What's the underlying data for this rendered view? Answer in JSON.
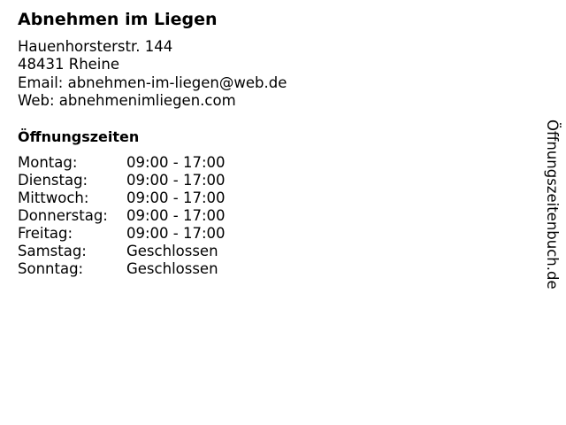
{
  "business": {
    "name": "Abnehmen im Liegen",
    "street": "Hauenhorsterstr. 144",
    "city": "48431 Rheine",
    "email": "Email: abnehmen-im-liegen@web.de",
    "web": "Web: abnehmenimliegen.com"
  },
  "hours_title": "Öffnungszeiten",
  "hours": [
    {
      "day": "Montag:",
      "time": "09:00 - 17:00"
    },
    {
      "day": "Dienstag:",
      "time": "09:00 - 17:00"
    },
    {
      "day": "Mittwoch:",
      "time": "09:00 - 17:00"
    },
    {
      "day": "Donnerstag:",
      "time": "09:00 - 17:00"
    },
    {
      "day": "Freitag:",
      "time": "09:00 - 17:00"
    },
    {
      "day": "Samstag:",
      "time": "Geschlossen"
    },
    {
      "day": "Sonntag:",
      "time": "Geschlossen"
    }
  ],
  "watermark": "Öffnungszeitenbuch.de"
}
